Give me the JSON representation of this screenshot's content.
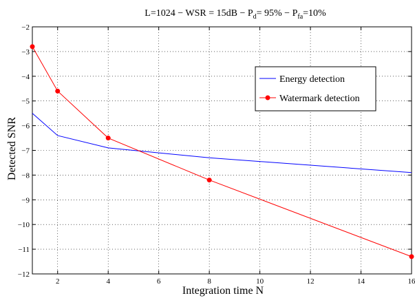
{
  "chart_data": {
    "type": "line",
    "title": {
      "prefix": "L=1024 − WSR = 15dB − P",
      "pd_sub": "d",
      "mid": "= 95% − P",
      "pfa_sub": "fa",
      "suffix": "=10%"
    },
    "xlabel": "Integration time N",
    "ylabel": "Detected SNR",
    "xlim": [
      1,
      16
    ],
    "ylim": [
      -12,
      -2
    ],
    "xticks": [
      2,
      4,
      6,
      8,
      10,
      12,
      14,
      16
    ],
    "yticks": [
      -12,
      -11,
      -10,
      -9,
      -8,
      -7,
      -6,
      -5,
      -4,
      -3,
      -2
    ],
    "grid": "dotted",
    "legend_position": "top-right",
    "series": [
      {
        "name": "Energy detection",
        "color": "#0000ff",
        "marker": "none",
        "x": [
          1,
          2,
          4,
          8,
          16
        ],
        "y": [
          -5.5,
          -6.4,
          -6.9,
          -7.3,
          -7.9
        ]
      },
      {
        "name": "Watermark detection",
        "color": "#ff0000",
        "marker": "circle",
        "x": [
          1,
          2,
          4,
          8,
          16
        ],
        "y": [
          -2.8,
          -4.6,
          -6.5,
          -8.2,
          -11.3
        ]
      }
    ]
  }
}
